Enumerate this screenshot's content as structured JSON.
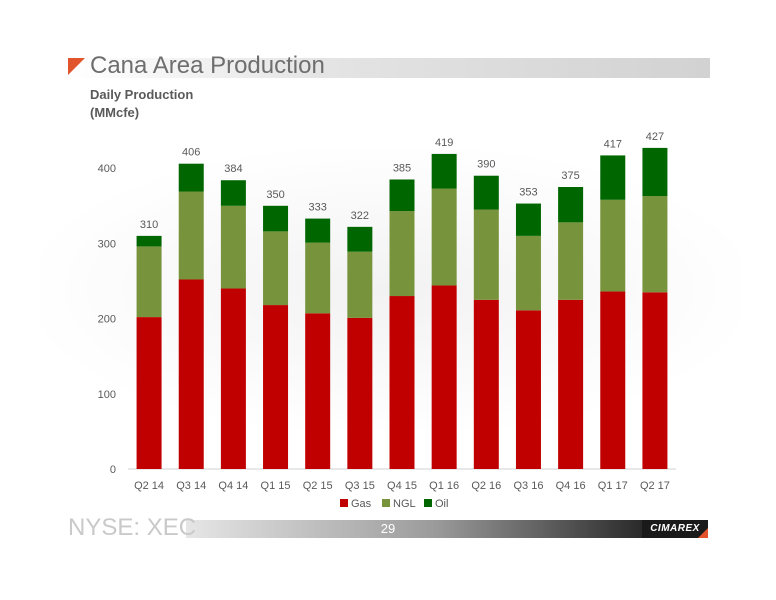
{
  "slide": {
    "title": "Cana Area Production",
    "subtitle_line1": "Daily Production",
    "subtitle_line2": "(MMcfe)",
    "footer_ticker": "NYSE: XEC",
    "page_number": "29",
    "logo_text": "CIMAREX"
  },
  "colors": {
    "gas": "#c00000",
    "ngl": "#77933c",
    "oil": "#006600",
    "accent": "#e2542c",
    "axis_text": "#595959",
    "total_label": "#595959"
  },
  "chart_data": {
    "type": "bar",
    "stacked": true,
    "title": "Cana Area Production",
    "xlabel": "",
    "ylabel": "Daily Production (MMcfe)",
    "ylim": [
      0,
      450
    ],
    "yticks": [
      0,
      100,
      200,
      300,
      400
    ],
    "grid": false,
    "legend_position": "bottom",
    "categories": [
      "Q2 14",
      "Q3 14",
      "Q4 14",
      "Q1 15",
      "Q2 15",
      "Q3 15",
      "Q4 15",
      "Q1 16",
      "Q2 16",
      "Q3 16",
      "Q4 16",
      "Q1 17",
      "Q2 17"
    ],
    "series": [
      {
        "name": "Gas",
        "color": "#c00000",
        "values": [
          202,
          252,
          240,
          218,
          207,
          201,
          230,
          244,
          225,
          211,
          225,
          236,
          235
        ]
      },
      {
        "name": "NGL",
        "color": "#77933c",
        "values": [
          94,
          117,
          110,
          98,
          94,
          88,
          113,
          129,
          120,
          99,
          103,
          122,
          128
        ]
      },
      {
        "name": "Oil",
        "color": "#006600",
        "values": [
          14,
          37,
          34,
          34,
          32,
          33,
          42,
          46,
          45,
          43,
          47,
          59,
          64
        ]
      }
    ],
    "totals": [
      310,
      406,
      384,
      350,
      333,
      322,
      385,
      419,
      390,
      353,
      375,
      417,
      427
    ]
  }
}
